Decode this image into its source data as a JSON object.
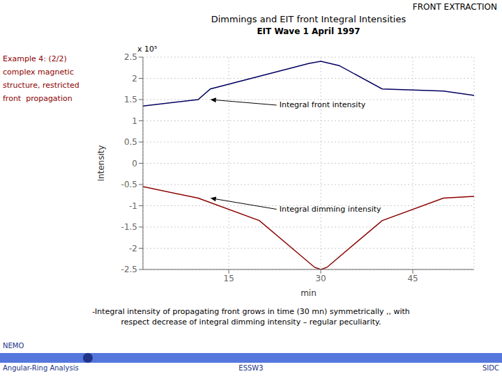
{
  "chart_data": {
    "type": "line",
    "title": "Dimmings and EIT front Integral Intensities",
    "subtitle": "EIT Wave 1 April 1997",
    "header": "FRONT EXTRACTION",
    "side_note": [
      "Example 4: (2/2)",
      "complex magnetic",
      "structure, restricted",
      "front  propagation"
    ],
    "x_label": "min",
    "y_label": "Intensity",
    "scale_label": "x 10⁵",
    "xlim": [
      1,
      55
    ],
    "xticks": [
      15,
      30,
      45
    ],
    "ylim": [
      -2.5,
      2.5
    ],
    "yticks": [
      -2.5,
      -2,
      -1.5,
      -1,
      -0.5,
      0,
      0.5,
      1,
      1.5,
      2,
      2.5
    ],
    "grid": true,
    "series": [
      {
        "color": "#000060",
        "x": [
          1,
          10,
          12,
          28,
          30,
          33,
          40,
          50,
          55
        ],
        "values": [
          1.35,
          1.5,
          1.75,
          2.35,
          2.4,
          2.3,
          1.75,
          1.7,
          1.6
        ]
      },
      {
        "color": "#8B0000",
        "x": [
          1,
          10,
          20,
          29,
          30,
          31,
          40,
          50,
          55
        ],
        "values": [
          -0.55,
          -0.82,
          -1.35,
          -2.45,
          -2.5,
          -2.45,
          -1.35,
          -0.82,
          -0.78
        ]
      }
    ],
    "annotations": [
      {
        "text": "Integral front intensity",
        "x": 12,
        "y": 1.5
      },
      {
        "text": "Integral dimming intensity",
        "x": 12,
        "y": -0.82
      }
    ],
    "footer": "-Integral intensity of propagating front grows in time (30 mn) symmetrically ,, with\nrespect decrease of integral dimming intensity – regular peculiarity.",
    "bottom_texts": [
      "NEMO",
      "Angular-Ring Analysis",
      "ESSW3",
      "SIDC"
    ]
  }
}
